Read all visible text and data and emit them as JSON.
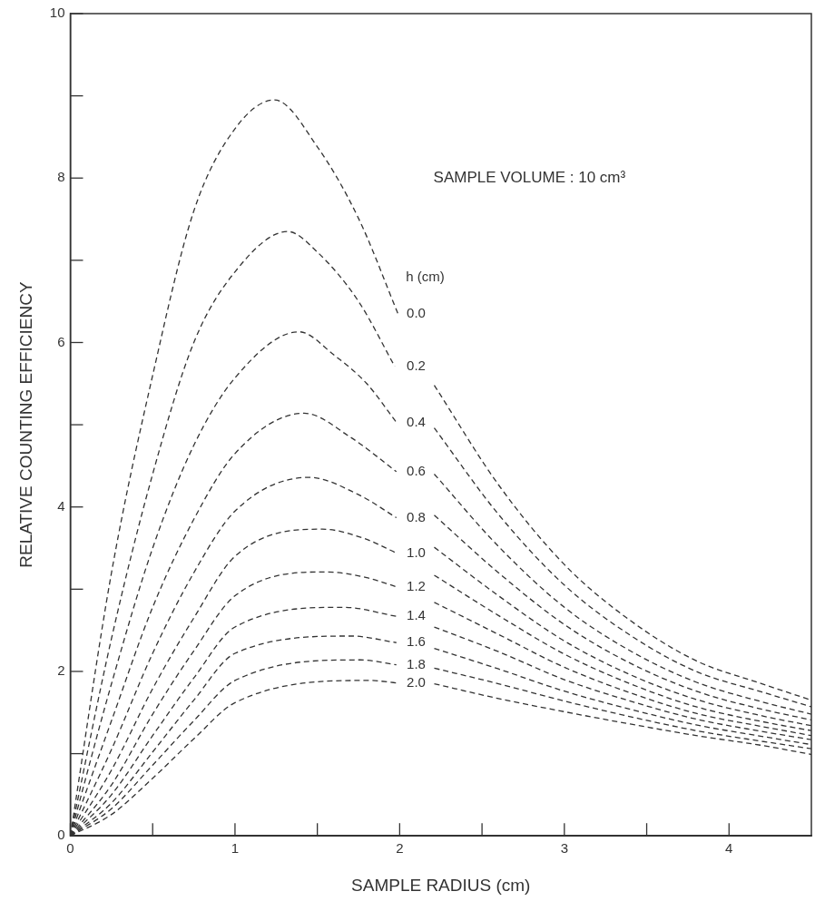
{
  "chart_data": {
    "type": "line",
    "xlabel": "SAMPLE RADIUS (cm)",
    "ylabel": "RELATIVE COUNTING EFFICIENCY",
    "legend_title": "h (cm)",
    "annotations": [
      "SAMPLE VOLUME : 10 cm³"
    ],
    "xlim": [
      0,
      4.5
    ],
    "ylim": [
      0,
      10
    ],
    "xticks": [
      0,
      {
        "value": 0.5,
        "label": null
      },
      1,
      {
        "value": 1.5,
        "label": null
      },
      2,
      {
        "value": 2.5,
        "label": null
      },
      3,
      {
        "value": 3.5,
        "label": null
      },
      4
    ],
    "yticks": [
      0,
      {
        "value": 1,
        "label": null
      },
      2,
      {
        "value": 3,
        "label": null
      },
      4,
      {
        "value": 5,
        "label": null
      },
      6,
      {
        "value": 7,
        "label": null
      },
      8,
      {
        "value": 9,
        "label": null
      },
      10
    ],
    "legend": false,
    "marker": "none",
    "line_style": "dashed",
    "series": [
      {
        "name": "0.0",
        "color": "#333333",
        "x": [
          0,
          0.25,
          0.5,
          0.75,
          1,
          1.24,
          1.5,
          1.75,
          1.99,
          2.1,
          2.21,
          2.6,
          3.0,
          3.4,
          3.8,
          4.2,
          4.5
        ],
        "values": [
          0,
          3.2,
          5.6,
          7.6,
          8.6,
          8.95,
          8.38,
          7.51,
          6.35,
          null,
          5.48,
          4.27,
          3.3,
          2.62,
          2.13,
          1.85,
          1.65
        ]
      },
      {
        "name": "0.2",
        "color": "#333333",
        "x": [
          0,
          0.25,
          0.5,
          0.75,
          1,
          1.32,
          1.5,
          1.75,
          1.97,
          2.1,
          2.21,
          2.6,
          3.0,
          3.4,
          3.8,
          4.2,
          4.5
        ],
        "values": [
          0,
          2.4,
          4.4,
          6.0,
          6.86,
          7.35,
          7.1,
          6.5,
          5.71,
          null,
          4.96,
          3.91,
          3.05,
          2.44,
          2.0,
          1.75,
          1.57
        ]
      },
      {
        "name": "0.4",
        "color": "#333333",
        "x": [
          0,
          0.25,
          0.5,
          0.75,
          1,
          1.39,
          1.6,
          1.8,
          1.98,
          2.1,
          2.21,
          2.6,
          3.0,
          3.4,
          3.8,
          4.2,
          4.5
        ],
        "values": [
          0,
          1.85,
          3.5,
          4.75,
          5.57,
          6.13,
          5.85,
          5.5,
          5.03,
          null,
          4.4,
          3.52,
          2.78,
          2.25,
          1.87,
          1.63,
          1.48
        ]
      },
      {
        "name": "0.6",
        "color": "#333333",
        "x": [
          0,
          0.25,
          0.5,
          0.75,
          1,
          1.42,
          1.7,
          1.98,
          2.1,
          2.21,
          2.6,
          3.0,
          3.4,
          3.8,
          4.2,
          4.5
        ],
        "values": [
          0,
          1.4,
          2.78,
          3.85,
          4.65,
          5.14,
          4.85,
          4.43,
          null,
          3.9,
          3.2,
          2.57,
          2.1,
          1.76,
          1.54,
          1.41
        ]
      },
      {
        "name": "0.8",
        "color": "#333333",
        "x": [
          0,
          0.25,
          0.5,
          0.75,
          1,
          1.45,
          1.75,
          1.98,
          2.1,
          2.21,
          2.6,
          3.0,
          3.4,
          3.8,
          4.2,
          4.5
        ],
        "values": [
          0,
          1.05,
          2.22,
          3.2,
          3.95,
          4.36,
          4.15,
          3.87,
          null,
          3.51,
          2.92,
          2.37,
          1.96,
          1.66,
          1.46,
          1.34
        ]
      },
      {
        "name": "1.0",
        "color": "#333333",
        "x": [
          0,
          0.25,
          0.5,
          0.75,
          1,
          1.53,
          1.78,
          1.98,
          2.1,
          2.21,
          2.6,
          3.0,
          3.4,
          3.8,
          4.2,
          4.5
        ],
        "values": [
          0,
          0.8,
          1.79,
          2.65,
          3.4,
          3.73,
          3.62,
          3.44,
          null,
          3.17,
          2.68,
          2.21,
          1.85,
          1.57,
          1.39,
          1.28
        ]
      },
      {
        "name": "1.2",
        "color": "#333333",
        "x": [
          0,
          0.25,
          0.5,
          0.75,
          1,
          1.56,
          1.8,
          1.98,
          2.1,
          2.21,
          2.6,
          3.0,
          3.4,
          3.8,
          4.2,
          4.5
        ],
        "values": [
          0,
          0.62,
          1.48,
          2.25,
          2.92,
          3.21,
          3.14,
          3.03,
          null,
          2.84,
          2.45,
          2.05,
          1.74,
          1.49,
          1.33,
          1.22
        ]
      },
      {
        "name": "1.4",
        "color": "#333333",
        "x": [
          0,
          0.25,
          0.5,
          0.75,
          1,
          1.66,
          1.98,
          2.1,
          2.21,
          2.6,
          3.0,
          3.4,
          3.8,
          4.2,
          4.5
        ],
        "values": [
          0,
          0.5,
          1.22,
          1.92,
          2.54,
          2.78,
          2.67,
          null,
          2.54,
          2.24,
          1.9,
          1.64,
          1.42,
          1.27,
          1.17
        ]
      },
      {
        "name": "1.6",
        "color": "#333333",
        "x": [
          0,
          0.25,
          0.5,
          0.75,
          1,
          1.71,
          1.98,
          2.1,
          2.21,
          2.6,
          3.0,
          3.4,
          3.8,
          4.2,
          4.5
        ],
        "values": [
          0,
          0.4,
          1.02,
          1.65,
          2.22,
          2.43,
          2.35,
          null,
          2.28,
          2.03,
          1.76,
          1.54,
          1.35,
          1.21,
          1.11
        ]
      },
      {
        "name": "1.8",
        "color": "#333333",
        "x": [
          0,
          0.25,
          0.5,
          0.75,
          1,
          1.76,
          1.98,
          2.1,
          2.21,
          2.6,
          3.0,
          3.4,
          3.8,
          4.2,
          4.5
        ],
        "values": [
          0,
          0.33,
          0.86,
          1.4,
          1.89,
          2.14,
          2.08,
          null,
          2.04,
          1.85,
          1.64,
          1.45,
          1.28,
          1.15,
          1.06
        ]
      },
      {
        "name": "2.0",
        "color": "#333333",
        "x": [
          0,
          0.25,
          0.5,
          0.75,
          1,
          1.82,
          1.98,
          2.1,
          2.21,
          2.6,
          3.0,
          3.4,
          3.8,
          4.2,
          4.5
        ],
        "values": [
          0,
          0.26,
          0.7,
          1.18,
          1.62,
          1.89,
          1.86,
          null,
          1.85,
          1.67,
          1.51,
          1.36,
          1.22,
          1.1,
          0.99
        ]
      }
    ]
  }
}
